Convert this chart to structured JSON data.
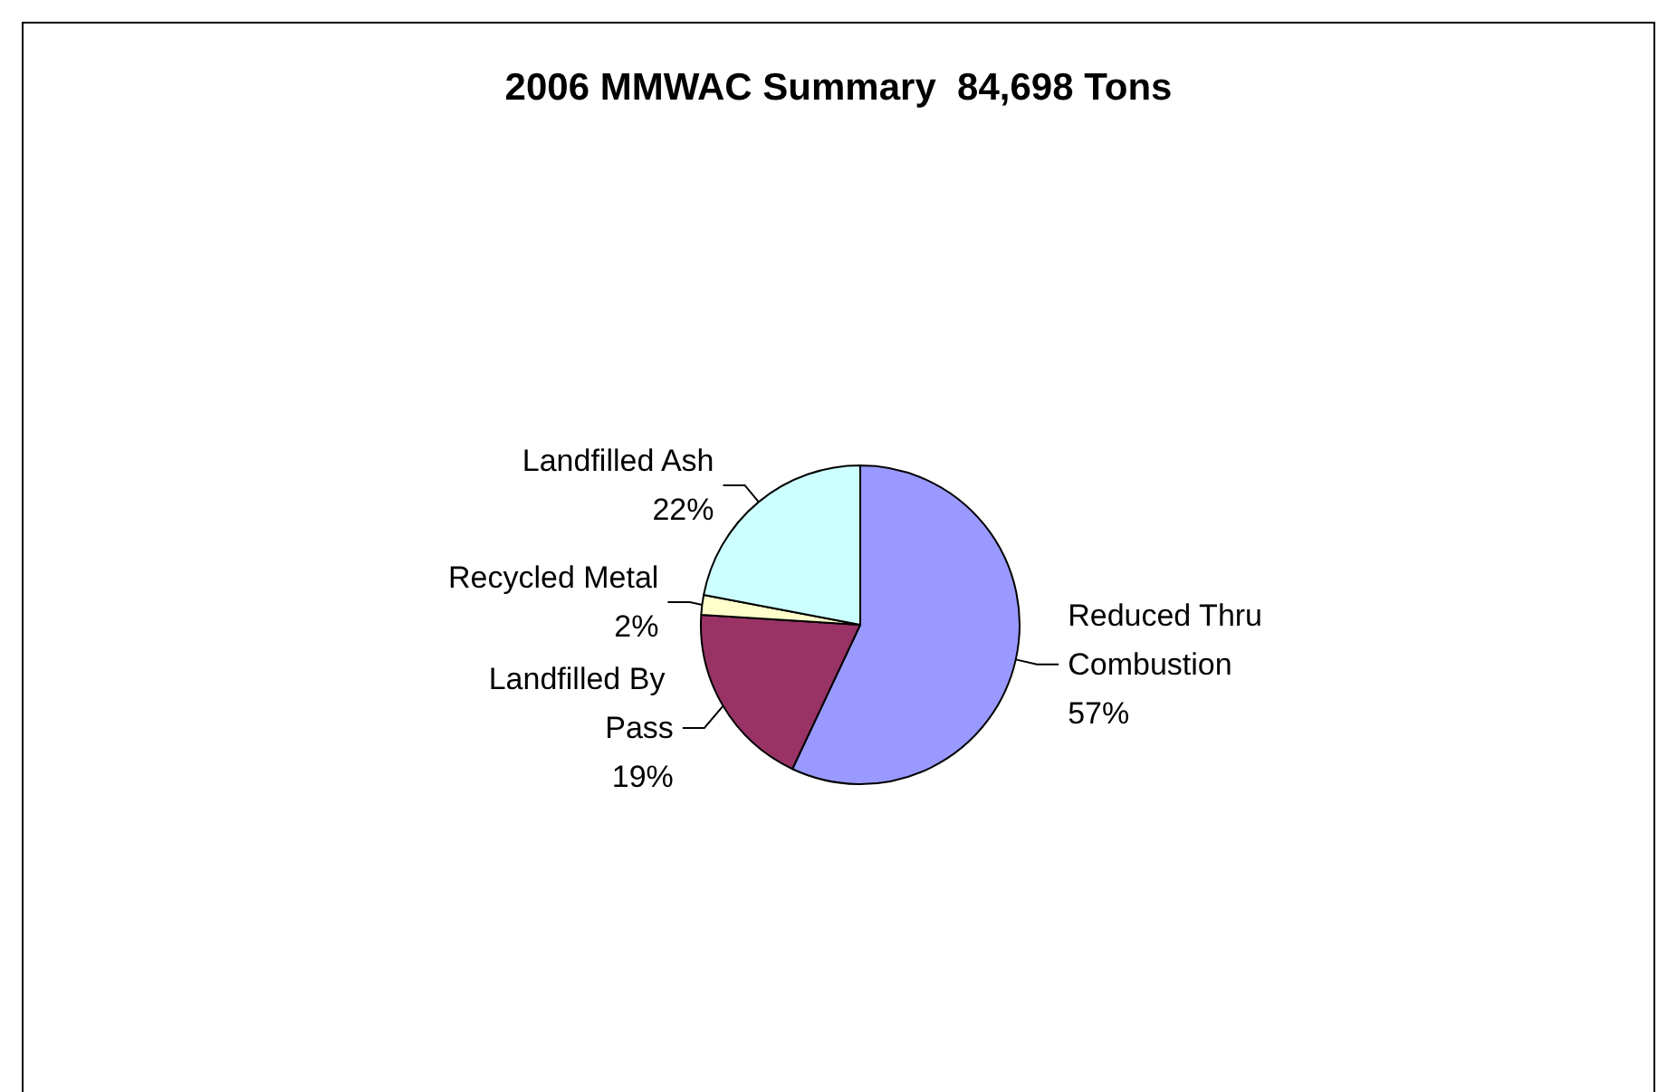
{
  "chart_data": {
    "type": "pie",
    "title": "2006 MMWAC Summary  84,698 Tons",
    "categories": [
      "Reduced Thru Combustion",
      "Landfilled By Pass",
      "Recycled Metal",
      "Landfilled Ash"
    ],
    "values": [
      57,
      19,
      2,
      22
    ],
    "value_labels": [
      "57%",
      "19%",
      "2%",
      "22%"
    ],
    "colors": [
      "#9999ff",
      "#993366",
      "#ffffcc",
      "#ccffff"
    ],
    "legend": false
  }
}
